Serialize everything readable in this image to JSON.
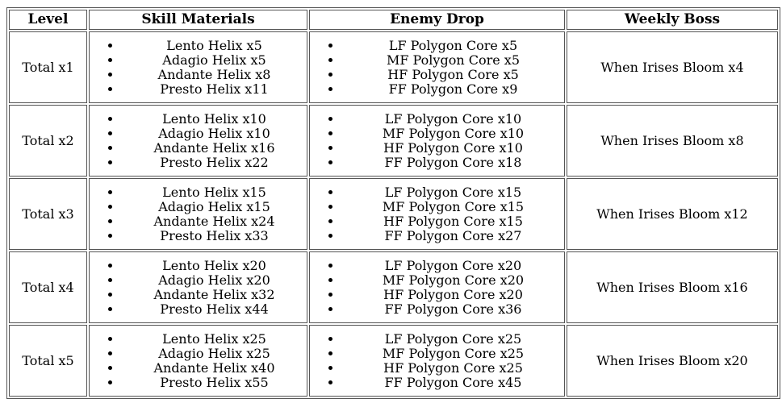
{
  "colors": {
    "background": "#ffffff",
    "text": "#000000",
    "border": "#555555"
  },
  "table": {
    "headers": [
      "Level",
      "Skill Materials",
      "Enemy Drop",
      "Weekly Boss"
    ],
    "rows": [
      {
        "level": "Total x1",
        "skill_materials": [
          "Lento Helix x5",
          "Adagio Helix x5",
          "Andante Helix x8",
          "Presto Helix x11"
        ],
        "enemy_drop": [
          "LF Polygon Core x5",
          "MF Polygon Core x5",
          "HF Polygon Core x5",
          "FF Polygon Core x9"
        ],
        "weekly_boss": "When Irises Bloom x4"
      },
      {
        "level": "Total x2",
        "skill_materials": [
          "Lento Helix x10",
          "Adagio Helix x10",
          "Andante Helix x16",
          "Presto Helix x22"
        ],
        "enemy_drop": [
          "LF Polygon Core x10",
          "MF Polygon Core x10",
          "HF Polygon Core x10",
          "FF Polygon Core x18"
        ],
        "weekly_boss": "When Irises Bloom x8"
      },
      {
        "level": "Total x3",
        "skill_materials": [
          "Lento Helix x15",
          "Adagio Helix x15",
          "Andante Helix x24",
          "Presto Helix x33"
        ],
        "enemy_drop": [
          "LF Polygon Core x15",
          "MF Polygon Core x15",
          "HF Polygon Core x15",
          "FF Polygon Core x27"
        ],
        "weekly_boss": "When Irises Bloom x12"
      },
      {
        "level": "Total x4",
        "skill_materials": [
          "Lento Helix x20",
          "Adagio Helix x20",
          "Andante Helix x32",
          "Presto Helix x44"
        ],
        "enemy_drop": [
          "LF Polygon Core x20",
          "MF Polygon Core x20",
          "HF Polygon Core x20",
          "FF Polygon Core x36"
        ],
        "weekly_boss": "When Irises Bloom x16"
      },
      {
        "level": "Total x5",
        "skill_materials": [
          "Lento Helix x25",
          "Adagio Helix x25",
          "Andante Helix x40",
          "Presto Helix x55"
        ],
        "enemy_drop": [
          "LF Polygon Core x25",
          "MF Polygon Core x25",
          "HF Polygon Core x25",
          "FF Polygon Core x45"
        ],
        "weekly_boss": "When Irises Bloom x20"
      }
    ]
  }
}
